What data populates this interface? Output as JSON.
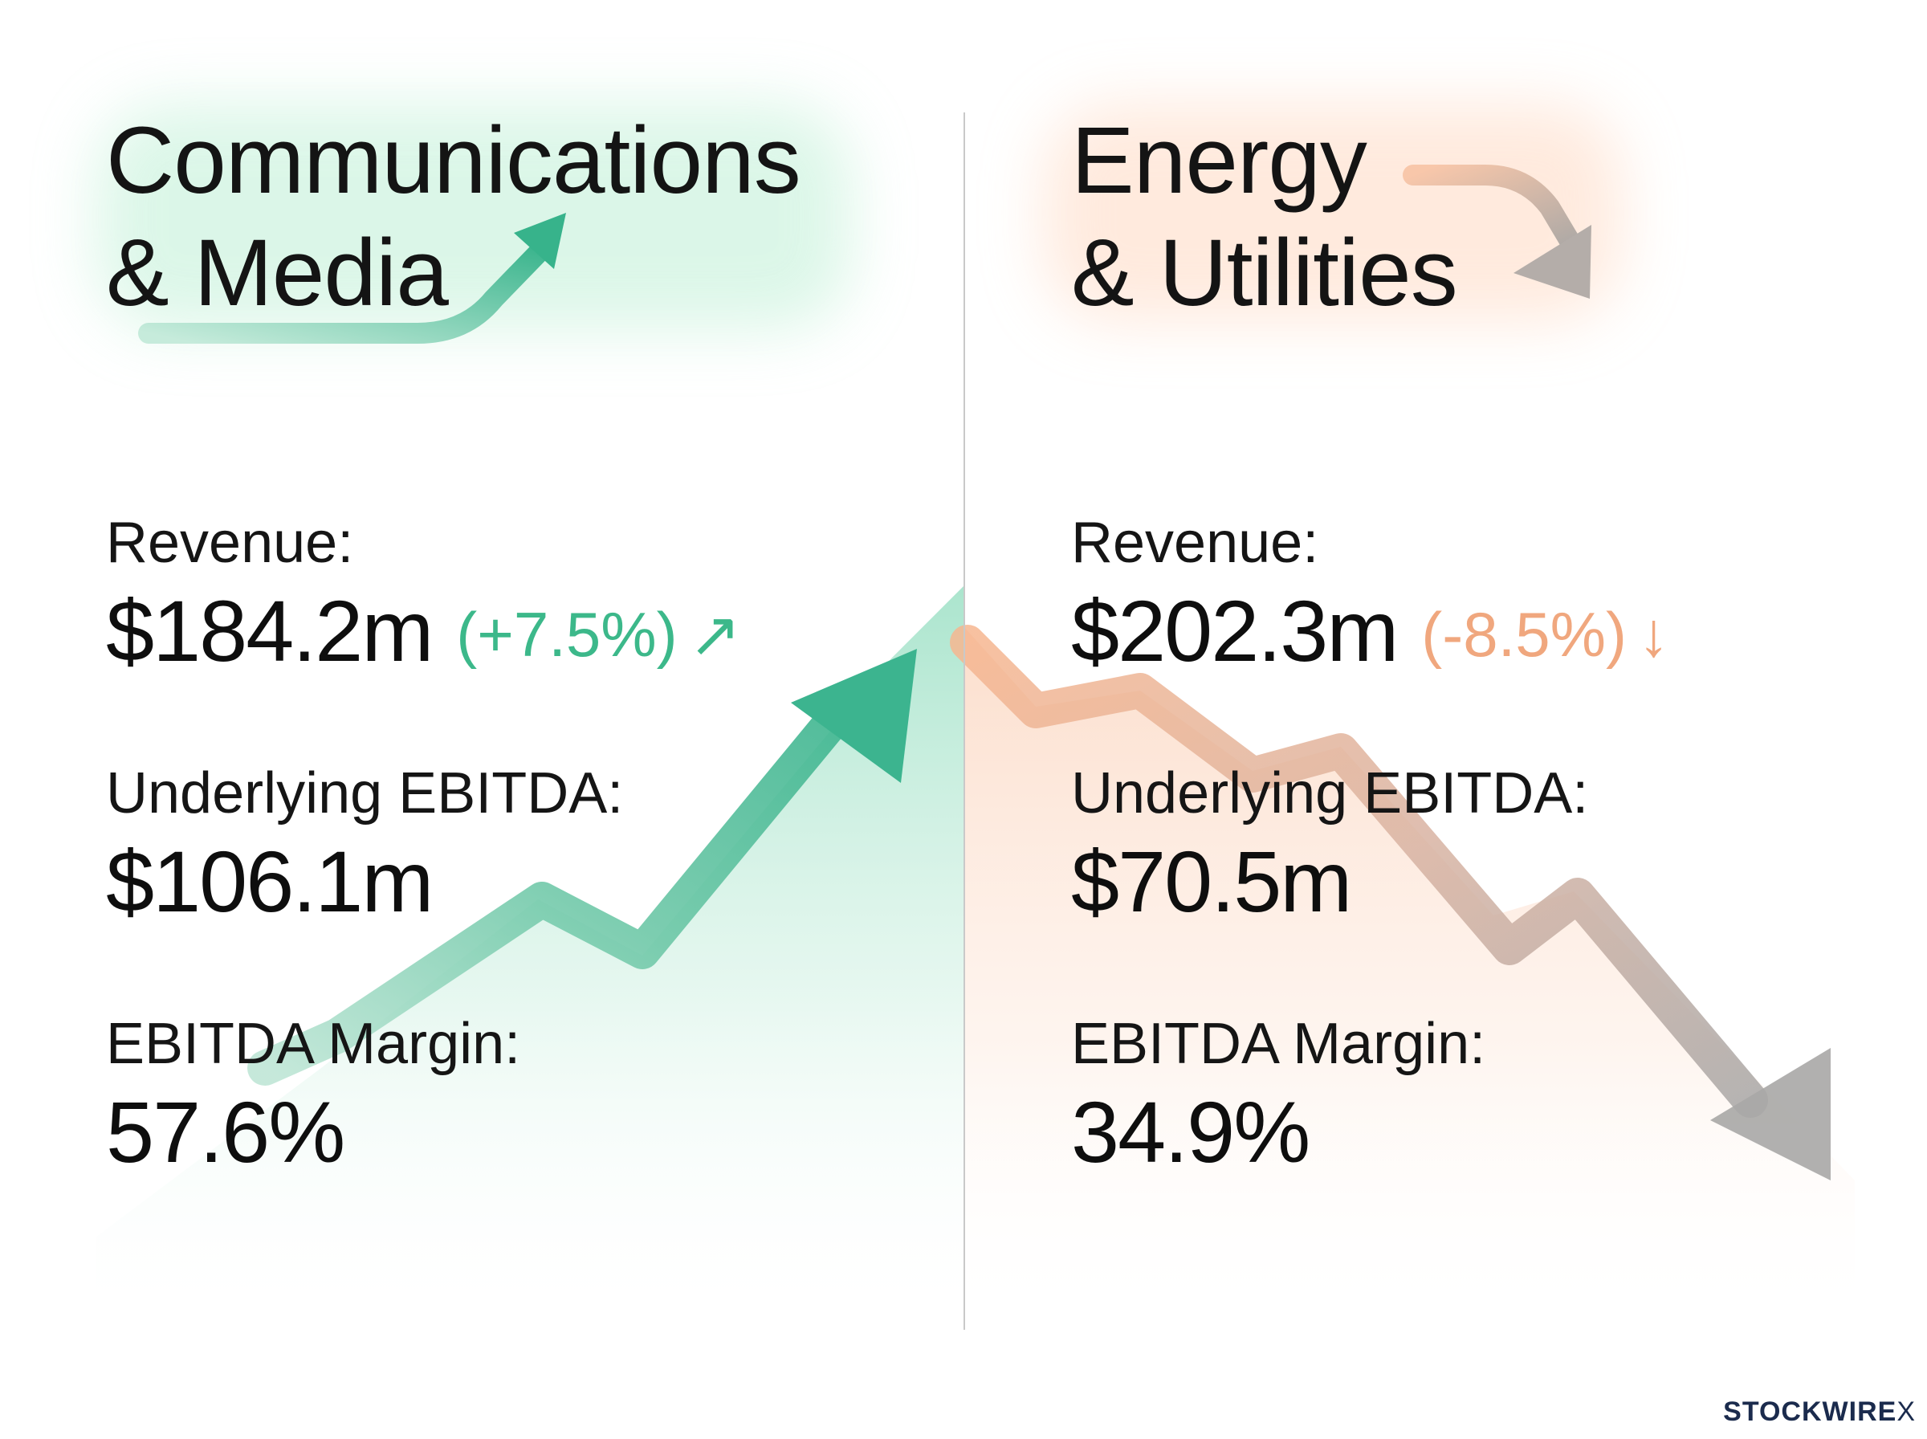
{
  "colors": {
    "accent_up": "#3cb88a",
    "accent_down": "#f0a77e",
    "arrow_down_gray": "#a8a4a2",
    "text": "#111111"
  },
  "left": {
    "title_line1": "Communications",
    "title_line2": "& Media",
    "trend": "up",
    "revenue_label": "Revenue:",
    "revenue_value": "$184.2m",
    "revenue_change": "(+7.5%)",
    "revenue_change_icon": "↗",
    "ebitda_label": "Underlying EBITDA:",
    "ebitda_value": "$106.1m",
    "margin_label": "EBITDA Margin:",
    "margin_value": "57.6%"
  },
  "right": {
    "title_line1": "Energy",
    "title_line2": "& Utilities",
    "trend": "down",
    "revenue_label": "Revenue:",
    "revenue_value": "$202.3m",
    "revenue_change": "(-8.5%)",
    "revenue_change_icon": "↓",
    "ebitda_label": "Underlying EBITDA:",
    "ebitda_value": "$70.5m",
    "margin_label": "EBITDA Margin:",
    "margin_value": "34.9%"
  },
  "brand": {
    "name": "STOCKWIRE",
    "mark": "X"
  }
}
